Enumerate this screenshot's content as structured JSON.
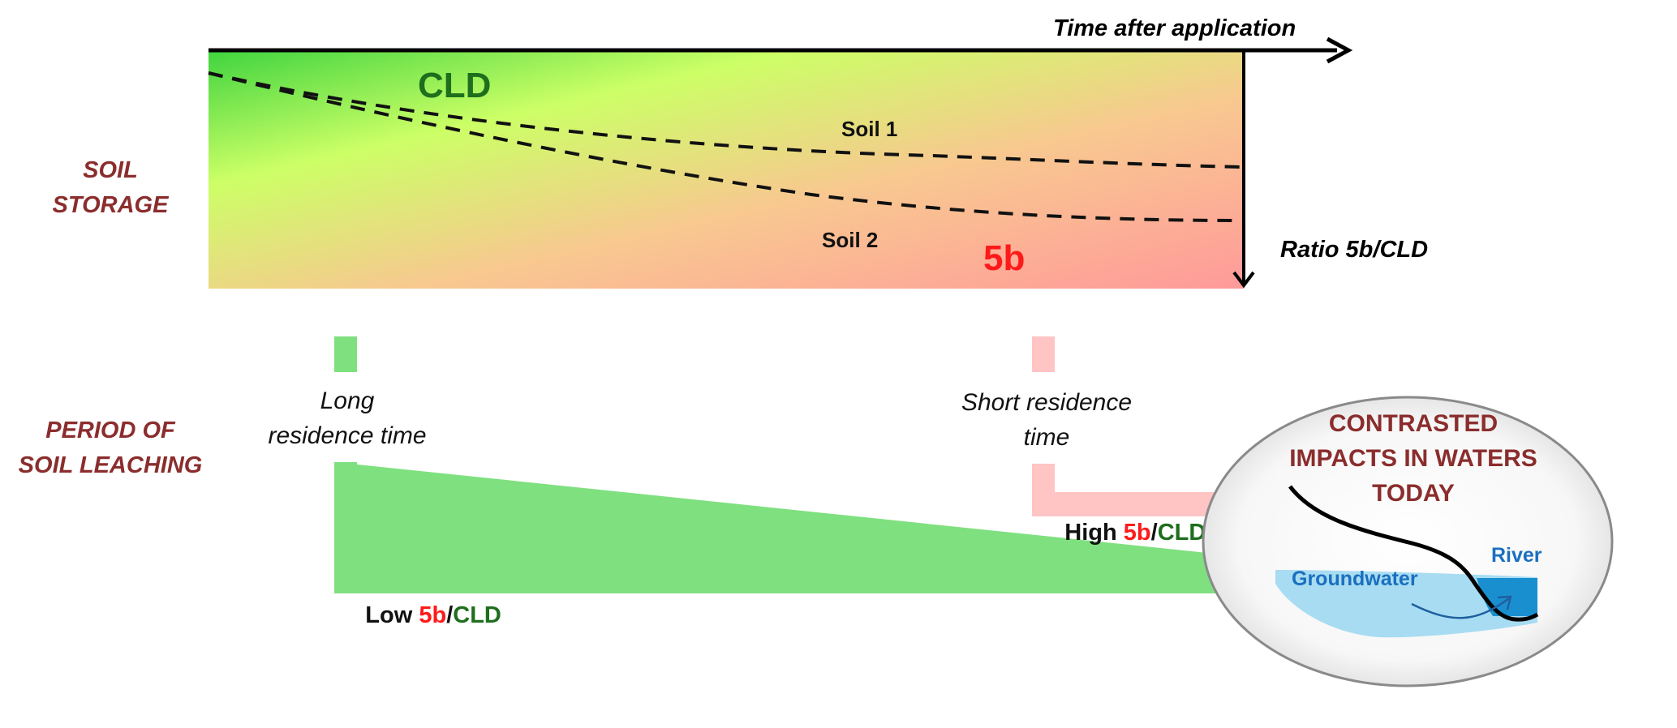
{
  "axis": {
    "time_label": "Time after application",
    "ratio_label": "Ratio 5b/CLD"
  },
  "storage_box": {
    "top_label": "CLD",
    "bottom_label": "5b",
    "soil1": "Soil 1",
    "soil2": "Soil 2"
  },
  "row_labels": {
    "storage_line1": "SOIL",
    "storage_line2": "STORAGE",
    "leaching_line1": "PERIOD OF",
    "leaching_line2": "SOIL LEACHING"
  },
  "long_residence": {
    "line1": "Long",
    "line2": "residence time",
    "ratio_prefix": "Low ",
    "ratio_num": "5b",
    "ratio_sep": "/",
    "ratio_den": "CLD"
  },
  "short_residence": {
    "line1": "Short residence",
    "line2": "time",
    "ratio_prefix": "High ",
    "ratio_num": "5b",
    "ratio_sep": "/",
    "ratio_den": "CLD"
  },
  "impacts": {
    "line1": "CONTRASTED",
    "line2": "IMPACTS IN WATERS",
    "line3": "TODAY",
    "groundwater": "Groundwater",
    "river": "River"
  },
  "colors": {
    "green_arrow": "#7fe07f",
    "pink_arrow": "#ffc4c4",
    "label_red": "#8b2d2d",
    "cld_green": "#1e6e1e",
    "fivb_red": "#ff1a1a",
    "water_blue": "#1a6fbf"
  }
}
